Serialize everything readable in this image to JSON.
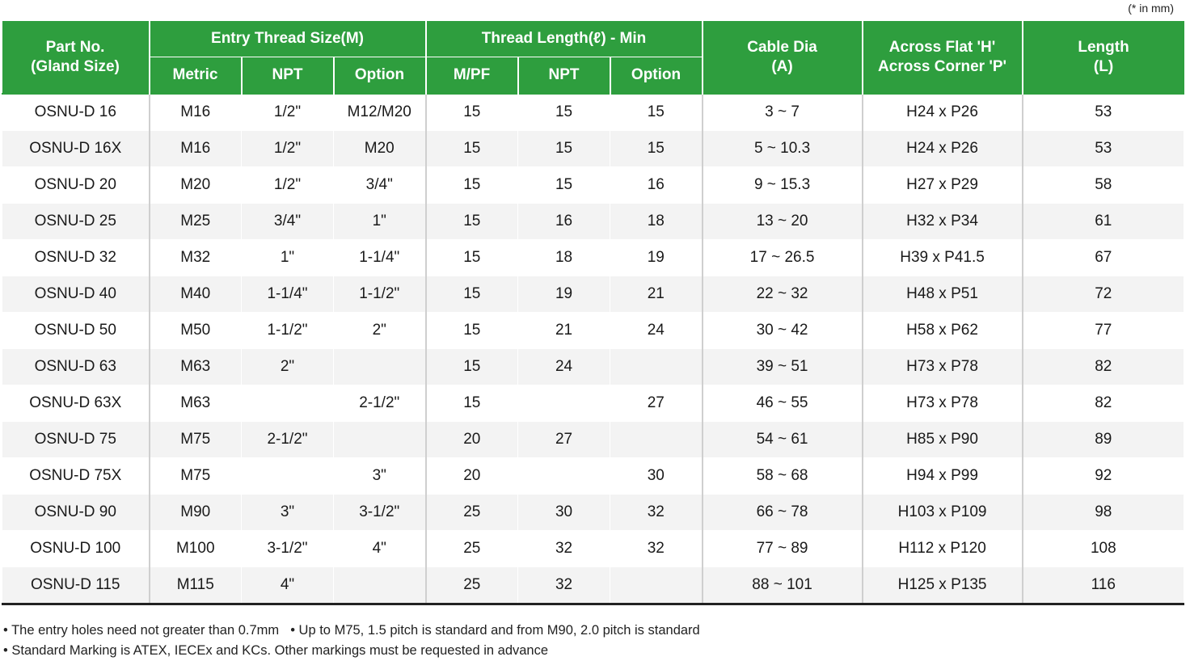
{
  "unit_note": "(* in mm)",
  "header": {
    "part_no": [
      "Part No.",
      "(Gland Size)"
    ],
    "entry_thread": "Entry Thread Size(M)",
    "thread_length": "Thread Length(ℓ) - Min",
    "cable_dia": [
      "Cable Dia",
      "(A)"
    ],
    "across": [
      "Across Flat 'H'",
      "Across Corner 'P'"
    ],
    "length": [
      "Length",
      "(L)"
    ],
    "metric": "Metric",
    "npt": "NPT",
    "option": "Option",
    "mpf": "M/PF",
    "npt2": "NPT",
    "option2": "Option"
  },
  "rows": [
    {
      "part": "OSNU-D 16",
      "metric": "M16",
      "npt": "1/2\"",
      "option": "M12/M20",
      "tl_mpf": "15",
      "tl_npt": "15",
      "tl_opt": "15",
      "cable": "3 ~ 7",
      "across": "H24 x P26",
      "length": "53"
    },
    {
      "part": "OSNU-D 16X",
      "metric": "M16",
      "npt": "1/2\"",
      "option": "M20",
      "tl_mpf": "15",
      "tl_npt": "15",
      "tl_opt": "15",
      "cable": "5 ~ 10.3",
      "across": "H24 x P26",
      "length": "53"
    },
    {
      "part": "OSNU-D 20",
      "metric": "M20",
      "npt": "1/2\"",
      "option": "3/4\"",
      "tl_mpf": "15",
      "tl_npt": "15",
      "tl_opt": "16",
      "cable": "9 ~ 15.3",
      "across": "H27 x P29",
      "length": "58"
    },
    {
      "part": "OSNU-D 25",
      "metric": "M25",
      "npt": "3/4\"",
      "option": "1\"",
      "tl_mpf": "15",
      "tl_npt": "16",
      "tl_opt": "18",
      "cable": "13 ~ 20",
      "across": "H32 x P34",
      "length": "61"
    },
    {
      "part": "OSNU-D 32",
      "metric": "M32",
      "npt": "1\"",
      "option": "1-1/4\"",
      "tl_mpf": "15",
      "tl_npt": "18",
      "tl_opt": "19",
      "cable": "17 ~ 26.5",
      "across": "H39 x P41.5",
      "length": "67"
    },
    {
      "part": "OSNU-D 40",
      "metric": "M40",
      "npt": "1-1/4\"",
      "option": "1-1/2\"",
      "tl_mpf": "15",
      "tl_npt": "19",
      "tl_opt": "21",
      "cable": "22 ~ 32",
      "across": "H48 x P51",
      "length": "72"
    },
    {
      "part": "OSNU-D 50",
      "metric": "M50",
      "npt": "1-1/2\"",
      "option": "2\"",
      "tl_mpf": "15",
      "tl_npt": "21",
      "tl_opt": "24",
      "cable": "30 ~ 42",
      "across": "H58 x P62",
      "length": "77"
    },
    {
      "part": "OSNU-D 63",
      "metric": "M63",
      "npt": "2\"",
      "option": "",
      "tl_mpf": "15",
      "tl_npt": "24",
      "tl_opt": "",
      "cable": "39 ~ 51",
      "across": "H73 x P78",
      "length": "82"
    },
    {
      "part": "OSNU-D 63X",
      "metric": "M63",
      "npt": "",
      "option": "2-1/2\"",
      "tl_mpf": "15",
      "tl_npt": "",
      "tl_opt": "27",
      "cable": "46 ~ 55",
      "across": "H73 x P78",
      "length": "82"
    },
    {
      "part": "OSNU-D 75",
      "metric": "M75",
      "npt": "2-1/2\"",
      "option": "",
      "tl_mpf": "20",
      "tl_npt": "27",
      "tl_opt": "",
      "cable": "54 ~ 61",
      "across": "H85 x P90",
      "length": "89"
    },
    {
      "part": "OSNU-D 75X",
      "metric": "M75",
      "npt": "",
      "option": "3\"",
      "tl_mpf": "20",
      "tl_npt": "",
      "tl_opt": "30",
      "cable": "58 ~ 68",
      "across": "H94 x P99",
      "length": "92"
    },
    {
      "part": "OSNU-D 90",
      "metric": "M90",
      "npt": "3\"",
      "option": "3-1/2\"",
      "tl_mpf": "25",
      "tl_npt": "30",
      "tl_opt": "32",
      "cable": "66 ~ 78",
      "across": "H103 x P109",
      "length": "98"
    },
    {
      "part": "OSNU-D 100",
      "metric": "M100",
      "npt": "3-1/2\"",
      "option": "4\"",
      "tl_mpf": "25",
      "tl_npt": "32",
      "tl_opt": "32",
      "cable": "77 ~ 89",
      "across": "H112 x P120",
      "length": "108"
    },
    {
      "part": "OSNU-D 115",
      "metric": "M115",
      "npt": "4\"",
      "option": "",
      "tl_mpf": "25",
      "tl_npt": "32",
      "tl_opt": "",
      "cable": "88 ~ 101",
      "across": "H125 x P135",
      "length": "116"
    }
  ],
  "notes": {
    "line1a": "• The entry holes need not greater than 0.7mm",
    "line1b": "• Up to M75, 1.5 pitch is standard and from M90, 2.0 pitch is standard",
    "line2": "• Standard Marking is ATEX, IECEx and KCs. Other markings must be requested in advance"
  }
}
